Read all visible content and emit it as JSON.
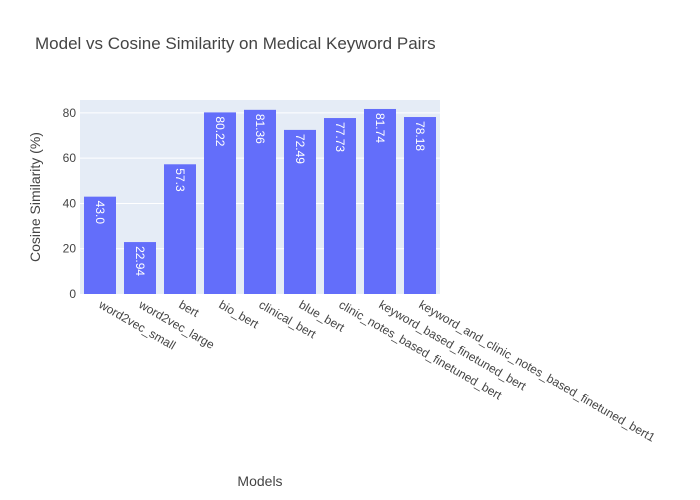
{
  "chart_data": {
    "type": "bar",
    "title": "Model vs Cosine Similarity on Medical Keyword Pairs",
    "xlabel": "Models",
    "ylabel": "Cosine Similarity (%)",
    "categories": [
      "word2vec_small",
      "word2vec_large",
      "bert",
      "bio_bert",
      "clinical_bert",
      "blue_bert",
      "clinic_notes_based_finetuned_bert",
      "keyword_based_finetuned_bert",
      "keyword_and_clinic_notes_based_finetuned_bert1"
    ],
    "values": [
      43.0,
      22.94,
      57.3,
      80.22,
      81.36,
      72.49,
      77.73,
      81.74,
      78.18
    ],
    "data_labels": [
      "43.0",
      "22.94",
      "57.3",
      "80.22",
      "81.36",
      "72.49",
      "77.73",
      "81.74",
      "78.18"
    ],
    "ylim": [
      0,
      85.7
    ],
    "yticks": [
      0,
      20,
      40,
      60,
      80
    ],
    "grid": true,
    "colors": {
      "bar": "#636efa",
      "plot_bg": "#e5ecf6",
      "grid": "#ffffff",
      "text": "#444444",
      "data_label": "#ffffff"
    }
  }
}
